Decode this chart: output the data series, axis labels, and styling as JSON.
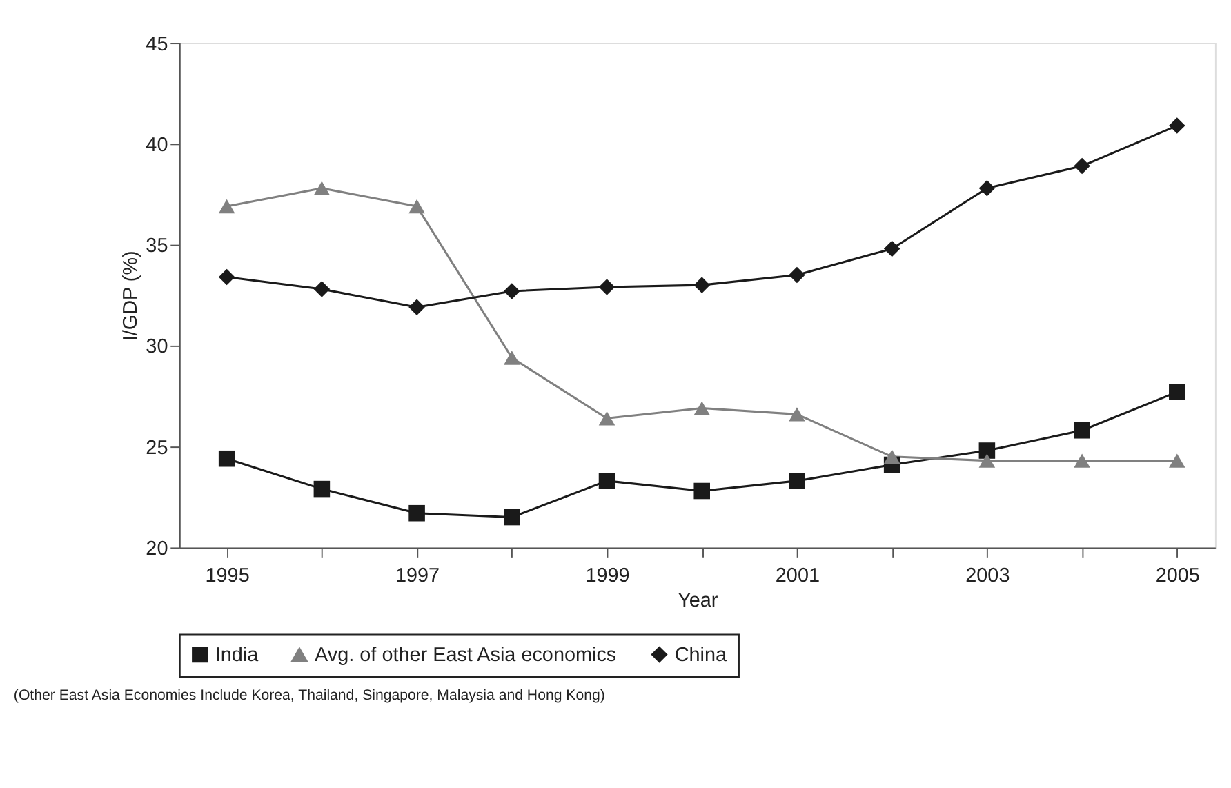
{
  "chart_data": {
    "type": "line",
    "xlabel": "Year",
    "ylabel": "I/GDP (%)",
    "x": [
      1995,
      1996,
      1997,
      1998,
      1999,
      2000,
      2001,
      2002,
      2003,
      2004,
      2005
    ],
    "series": [
      {
        "name": "India",
        "color": "#1a1a1a",
        "marker": "square",
        "values": [
          24.4,
          22.9,
          21.7,
          21.5,
          23.3,
          22.8,
          23.3,
          24.1,
          24.8,
          25.8,
          27.7
        ]
      },
      {
        "name": "Avg. of other East Asia economics",
        "color": "#808080",
        "marker": "triangle",
        "values": [
          36.9,
          37.8,
          36.9,
          29.4,
          26.4,
          26.9,
          26.6,
          24.5,
          24.3,
          24.3,
          24.3
        ]
      },
      {
        "name": "China",
        "color": "#1a1a1a",
        "marker": "diamond",
        "values": [
          33.4,
          32.8,
          31.9,
          32.7,
          32.9,
          33.0,
          33.5,
          34.8,
          37.8,
          38.9,
          40.9
        ]
      }
    ],
    "xlim": [
      1994.5,
      2005.4
    ],
    "xticks": [
      1995,
      {
        "value": 1996,
        "label": null
      },
      1997,
      {
        "value": 1998,
        "label": null
      },
      1999,
      {
        "value": 2000,
        "label": null
      },
      2001,
      {
        "value": 2002,
        "label": null
      },
      2003,
      {
        "value": 2004,
        "label": null
      },
      2005
    ],
    "ylim": [
      20,
      45
    ],
    "yticks": [
      20,
      25,
      30,
      35,
      40,
      45
    ],
    "grid": false,
    "legend": "bottom",
    "line_style": "solid",
    "annotations": [
      "(Other East Asia Economies Include Korea, Thailand, Singapore, Malaysia and Hong Kong)"
    ]
  }
}
